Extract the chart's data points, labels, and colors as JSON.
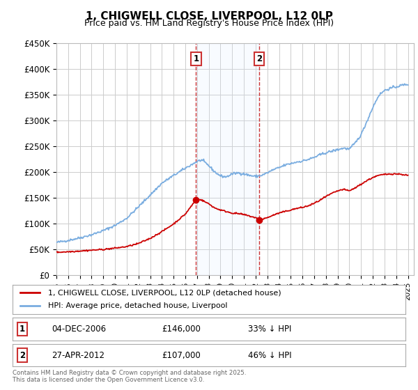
{
  "title": "1, CHIGWELL CLOSE, LIVERPOOL, L12 0LP",
  "subtitle": "Price paid vs. HM Land Registry's House Price Index (HPI)",
  "ylabel_ticks": [
    "£0",
    "£50K",
    "£100K",
    "£150K",
    "£200K",
    "£250K",
    "£300K",
    "£350K",
    "£400K",
    "£450K"
  ],
  "ytick_values": [
    0,
    50000,
    100000,
    150000,
    200000,
    250000,
    300000,
    350000,
    400000,
    450000
  ],
  "background_color": "#ffffff",
  "plot_bg_color": "#ffffff",
  "grid_color": "#cccccc",
  "hpi_color": "#7aade0",
  "price_color": "#cc0000",
  "sale1_date": "04-DEC-2006",
  "sale1_price": 146000,
  "sale1_pct": "33%",
  "sale1_year": 2006.92,
  "sale2_date": "27-APR-2012",
  "sale2_price": 107000,
  "sale2_pct": "46%",
  "sale2_year": 2012.32,
  "legend_line1": "1, CHIGWELL CLOSE, LIVERPOOL, L12 0LP (detached house)",
  "legend_line2": "HPI: Average price, detached house, Liverpool",
  "footer": "Contains HM Land Registry data © Crown copyright and database right 2025.\nThis data is licensed under the Open Government Licence v3.0.",
  "annotation_box_color": "#cc3333",
  "vline_color": "#cc3333",
  "span_color": "#ddeeff"
}
